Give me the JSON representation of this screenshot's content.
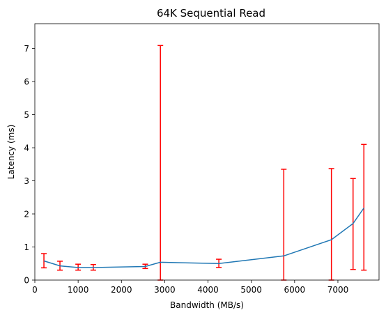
{
  "chart_data": {
    "type": "line",
    "title": "64K  Sequential Read",
    "xlabel": "Bandwidth (MB/s)",
    "ylabel": "Latency (ms)",
    "xlim": [
      0,
      7950
    ],
    "ylim": [
      0,
      7.75
    ],
    "xticks": [
      0,
      1000,
      2000,
      3000,
      4000,
      5000,
      6000,
      7000
    ],
    "yticks": [
      0,
      1,
      2,
      3,
      4,
      5,
      6,
      7
    ],
    "grid": false,
    "series": [
      {
        "x": [
          210,
          580,
          1000,
          1350,
          2550,
          2900,
          4250,
          5750,
          6850,
          7350,
          7600
        ],
        "y": [
          0.58,
          0.43,
          0.38,
          0.38,
          0.41,
          0.54,
          0.5,
          0.73,
          1.22,
          1.71,
          2.18
        ],
        "error_low": [
          0.37,
          0.3,
          0.3,
          0.3,
          0.35,
          0.0,
          0.38,
          0.0,
          0.0,
          0.32,
          0.3
        ],
        "error_high": [
          0.8,
          0.57,
          0.48,
          0.47,
          0.48,
          7.09,
          0.63,
          3.35,
          3.37,
          3.07,
          4.1
        ],
        "line_color": "#1f77b4",
        "error_color": "#ff0000"
      }
    ]
  }
}
